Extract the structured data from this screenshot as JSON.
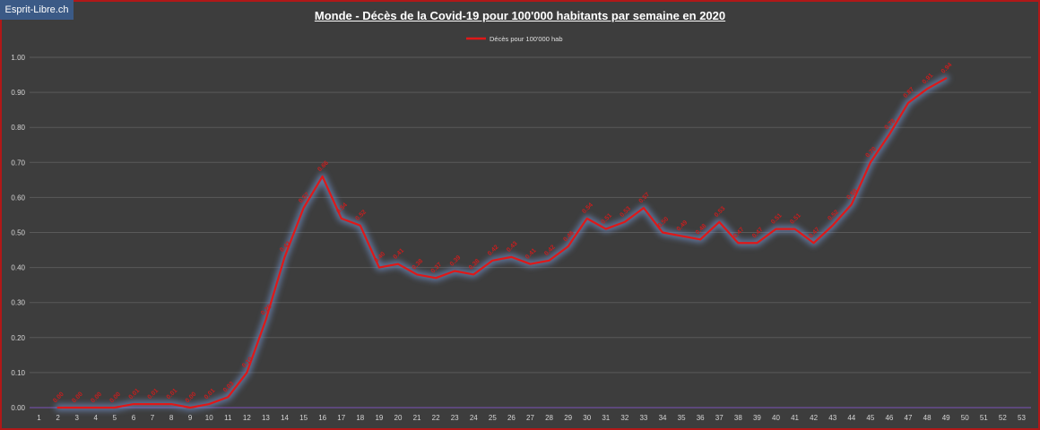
{
  "brand": "Esprit-Libre.ch",
  "chart_data": {
    "type": "line",
    "title": "Monde - Décès de la Covid-19 pour 100'000  habitants par semaine en 2020",
    "xlabel": "",
    "ylabel": "",
    "categories": [
      "1",
      "2",
      "3",
      "4",
      "5",
      "6",
      "7",
      "8",
      "9",
      "10",
      "11",
      "12",
      "13",
      "14",
      "15",
      "16",
      "17",
      "18",
      "19",
      "20",
      "21",
      "22",
      "23",
      "24",
      "25",
      "26",
      "27",
      "28",
      "29",
      "30",
      "31",
      "32",
      "33",
      "34",
      "35",
      "36",
      "37",
      "38",
      "39",
      "40",
      "41",
      "42",
      "43",
      "44",
      "45",
      "46",
      "47",
      "48",
      "49",
      "50",
      "51",
      "52",
      "53"
    ],
    "ylim": [
      0,
      1.0
    ],
    "yticks": [
      "0.00",
      "0.10",
      "0.20",
      "0.30",
      "0.40",
      "0.50",
      "0.60",
      "0.70",
      "0.80",
      "0.90",
      "1.00"
    ],
    "grid": true,
    "legend": "top-center",
    "series": [
      {
        "name": "Décès pour 100'000 hab",
        "color": "#e01818",
        "values": [
          null,
          0.0,
          0.0,
          0.0,
          0.0,
          0.01,
          0.01,
          0.01,
          0.0,
          0.01,
          0.03,
          0.1,
          0.25,
          0.43,
          0.57,
          0.66,
          0.54,
          0.52,
          0.4,
          0.41,
          0.38,
          0.37,
          0.39,
          0.38,
          0.42,
          0.43,
          0.41,
          0.42,
          0.46,
          0.54,
          0.51,
          0.53,
          0.57,
          0.5,
          0.49,
          0.48,
          0.53,
          0.47,
          0.47,
          0.51,
          0.51,
          0.47,
          0.52,
          0.58,
          0.7,
          0.78,
          0.87,
          0.91,
          0.94,
          null,
          null,
          null,
          null
        ],
        "labels": [
          "",
          "0.00",
          "0.00",
          "0.00",
          "0.00",
          "0.01",
          "0.01",
          "0.01",
          "0.00",
          "0.01",
          "0.03",
          "0.10",
          "0.25",
          "0.43",
          "0.57",
          "0.66",
          "0.54",
          "0.52",
          "0.40",
          "0.41",
          "0.38",
          "0.37",
          "0.39",
          "0.38",
          "0.42",
          "0.43",
          "0.41",
          "0.42",
          "0.46",
          "0.54",
          "0.51",
          "0.53",
          "0.57",
          "0.50",
          "0.49",
          "0.48",
          "0.53",
          "0.47",
          "0.47",
          "0.51",
          "0.51",
          "0.47",
          "0.52",
          "0.58",
          "0.70",
          "0.78",
          "0.87",
          "0.91",
          "0.94",
          "",
          "",
          "",
          ""
        ]
      }
    ]
  }
}
